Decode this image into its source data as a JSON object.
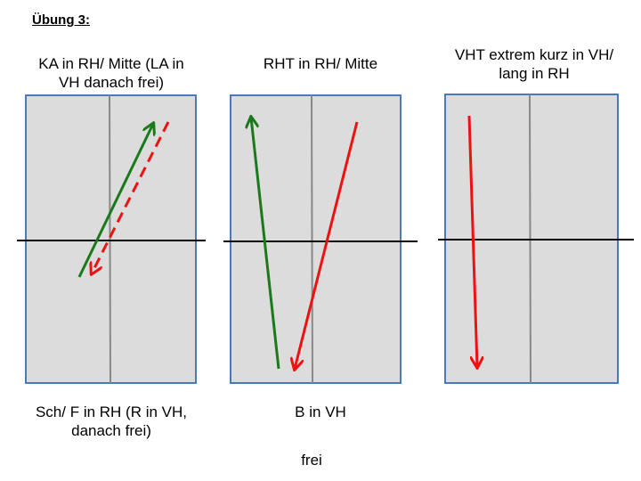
{
  "title": "Übung 3:",
  "panels": [
    {
      "top_label": "KA in RH/ Mitte (LA in\nVH danach frei)",
      "bottom_label": "Sch/ F in RH (R in VH,\ndanach frei)",
      "arrows": [
        {
          "color": "#1a7a1a",
          "style": "solid",
          "direction": "up"
        },
        {
          "color": "#ee1111",
          "style": "dashed",
          "direction": "down"
        }
      ]
    },
    {
      "top_label": "RHT in RH/ Mitte",
      "bottom_label": "B in VH",
      "arrows": [
        {
          "color": "#1a7a1a",
          "style": "solid",
          "direction": "up"
        },
        {
          "color": "#ee1111",
          "style": "solid",
          "direction": "down"
        }
      ]
    },
    {
      "top_label": "VHT extrem kurz in VH/\nlang in RH",
      "bottom_label": "",
      "arrows": [
        {
          "color": "#ee1111",
          "style": "solid",
          "direction": "down"
        }
      ]
    }
  ],
  "footer": "frei",
  "colors": {
    "panel_fill": "#dcdcdc",
    "panel_border": "#4a7ab8",
    "center_line": "#888888",
    "net_line": "#000000"
  }
}
